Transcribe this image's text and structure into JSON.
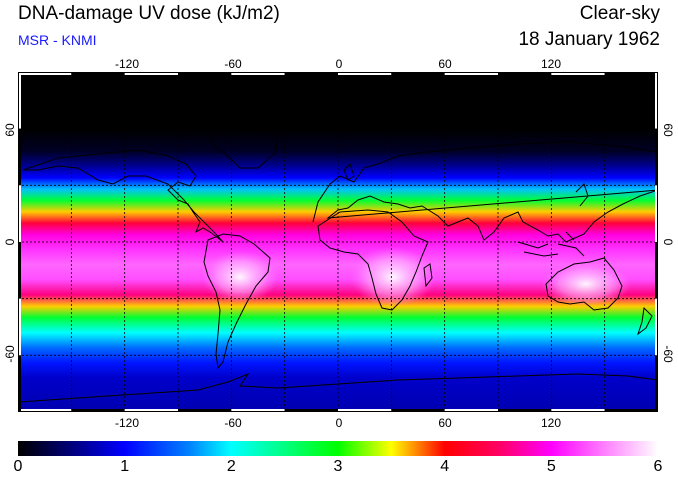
{
  "header": {
    "title": "DNA-damage UV dose (kJ/m2)",
    "source": "MSR - KNMI",
    "condition": "Clear-sky",
    "date": "18 January 1962"
  },
  "map": {
    "projection": "equirectangular",
    "lon_range": [
      -180,
      180
    ],
    "lat_range": [
      -90,
      90
    ],
    "longitude_ticks": [
      "-120",
      "-60",
      "0",
      "60",
      "120"
    ],
    "latitude_ticks": [
      "60",
      "0",
      "-60"
    ],
    "gridline_lons": [
      -150,
      -120,
      -90,
      -60,
      -30,
      0,
      30,
      60,
      90,
      120,
      150
    ],
    "gridline_lats": [
      60,
      30,
      0,
      -30,
      -60
    ],
    "dose_profile": [
      {
        "lat": 90,
        "dose": 0.0
      },
      {
        "lat": 60,
        "dose": 0.0
      },
      {
        "lat": 48,
        "dose": 0.15
      },
      {
        "lat": 40,
        "dose": 0.6
      },
      {
        "lat": 34,
        "dose": 1.0
      },
      {
        "lat": 28,
        "dose": 1.8
      },
      {
        "lat": 22,
        "dose": 2.8
      },
      {
        "lat": 16,
        "dose": 3.6
      },
      {
        "lat": 10,
        "dose": 4.3
      },
      {
        "lat": 4,
        "dose": 4.9
      },
      {
        "lat": -4,
        "dose": 5.2
      },
      {
        "lat": -12,
        "dose": 5.4
      },
      {
        "lat": -20,
        "dose": 5.3
      },
      {
        "lat": -28,
        "dose": 4.6
      },
      {
        "lat": -34,
        "dose": 3.6
      },
      {
        "lat": -40,
        "dose": 2.8
      },
      {
        "lat": -48,
        "dose": 2.0
      },
      {
        "lat": -56,
        "dose": 1.5
      },
      {
        "lat": -64,
        "dose": 1.1
      },
      {
        "lat": -72,
        "dose": 0.8
      },
      {
        "lat": -90,
        "dose": 0.7
      }
    ]
  },
  "colorbar": {
    "min": 0,
    "max": 6,
    "labels": [
      "0",
      "1",
      "2",
      "3",
      "4",
      "5",
      "6"
    ],
    "stops": [
      {
        "v": 0.0,
        "color": "#000000"
      },
      {
        "v": 0.5,
        "color": "#00007a"
      },
      {
        "v": 1.0,
        "color": "#0000ff"
      },
      {
        "v": 1.6,
        "color": "#0080ff"
      },
      {
        "v": 2.0,
        "color": "#00ffff"
      },
      {
        "v": 2.5,
        "color": "#00ff80"
      },
      {
        "v": 3.0,
        "color": "#00ff00"
      },
      {
        "v": 3.5,
        "color": "#ffff00"
      },
      {
        "v": 4.0,
        "color": "#ff0000"
      },
      {
        "v": 4.5,
        "color": "#ff0060"
      },
      {
        "v": 5.0,
        "color": "#ff00ff"
      },
      {
        "v": 5.5,
        "color": "#ff80ff"
      },
      {
        "v": 6.0,
        "color": "#ffffff"
      }
    ]
  }
}
